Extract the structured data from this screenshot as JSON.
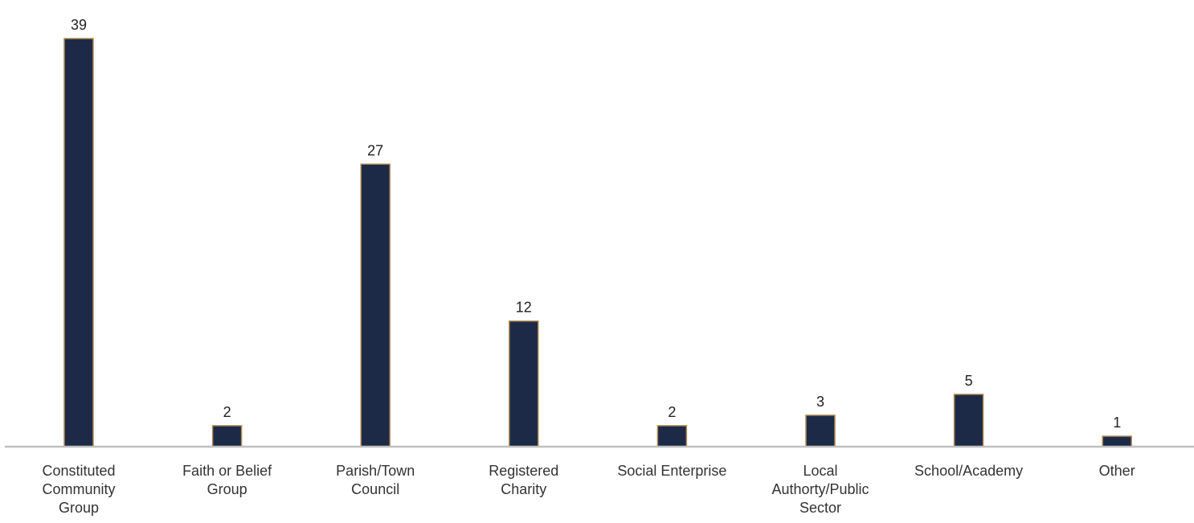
{
  "chart_data": {
    "type": "bar",
    "categories": [
      [
        "Constituted",
        "Community",
        "Group"
      ],
      [
        "Faith or Belief",
        "Group"
      ],
      [
        "Parish/Town",
        "Council"
      ],
      [
        "Registered",
        "Charity"
      ],
      [
        "Social Enterprise"
      ],
      [
        "Local",
        "Authorty/Public",
        "Sector"
      ],
      [
        "School/Academy"
      ],
      [
        "Other"
      ]
    ],
    "values": [
      39,
      2,
      27,
      12,
      2,
      3,
      5,
      1
    ],
    "data_labels": [
      "39",
      "2",
      "27",
      "12",
      "2",
      "3",
      "5",
      "1"
    ],
    "ylim": [
      0,
      39
    ],
    "grid": false,
    "legend": "none",
    "colors": {
      "bar_fill": "#1c2a47",
      "bar_stroke": "#b08a52",
      "axis_line": "#bfbfbf",
      "text": "#333333"
    }
  }
}
